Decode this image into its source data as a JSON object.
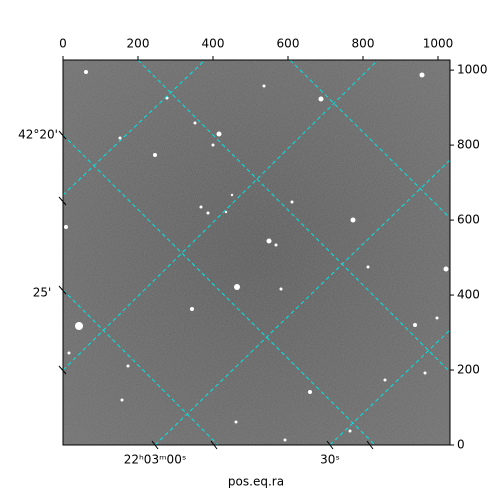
{
  "chart_data": {
    "type": "image",
    "xlabel": "pos.eq.ra",
    "xlim": [
      0,
      1032
    ],
    "xticks": [
      0,
      200,
      400,
      600,
      800,
      1000
    ],
    "ylim": [
      0,
      1027
    ],
    "yticks": [
      0,
      200,
      400,
      600,
      800,
      1000
    ],
    "world_labels": {
      "dec": [
        "42°20'",
        "25'"
      ],
      "ra": [
        "22ʰ03ᵐ00ˢ",
        "30ˢ"
      ]
    }
  }
}
